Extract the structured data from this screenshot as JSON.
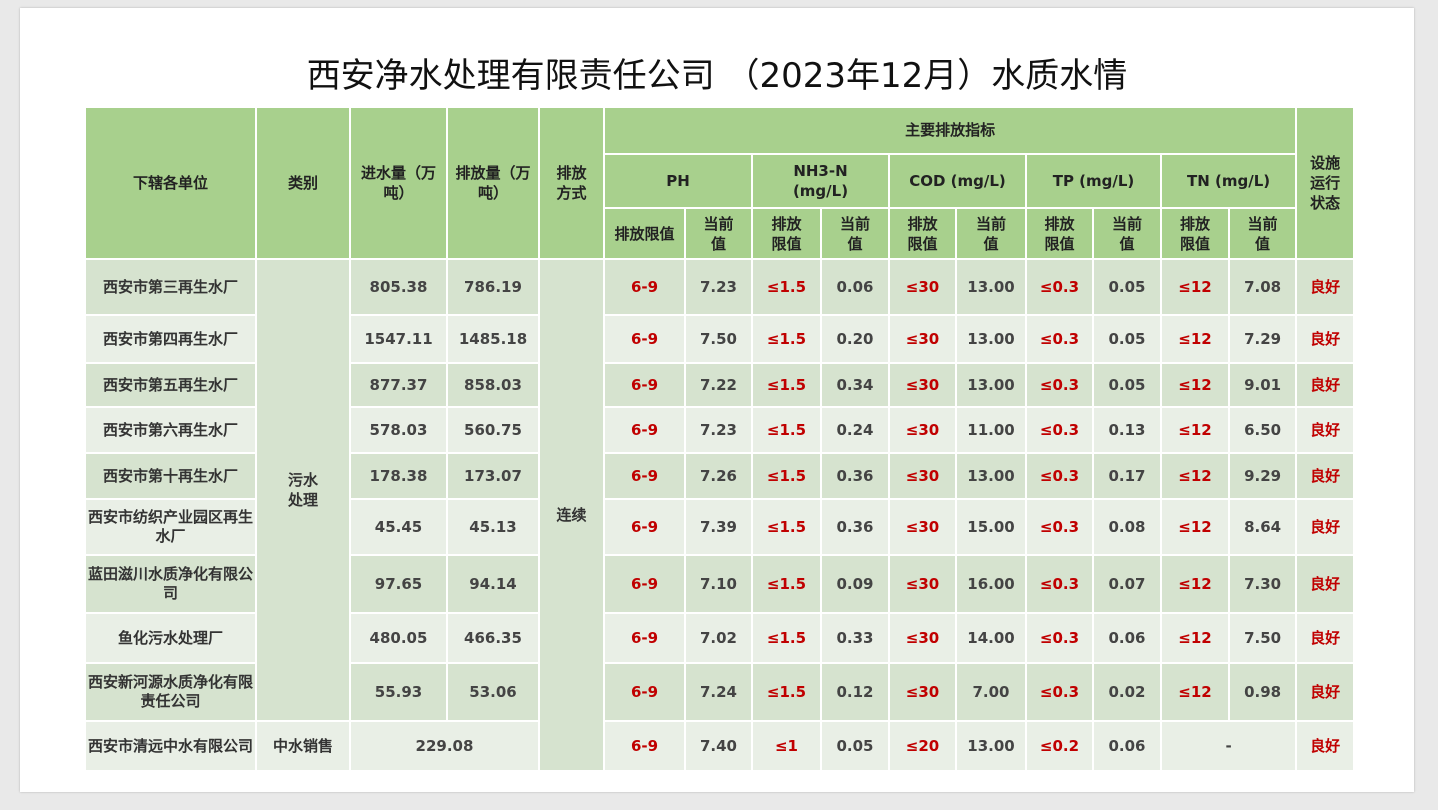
{
  "title": "西安净水处理有限责任公司 （2023年12月）水质水情",
  "header": {
    "unit": "下辖各单位",
    "category": "类别",
    "inflow": "进水量（万吨）",
    "outflow": "排放量（万吨）",
    "method": "排放方式",
    "main_indicators": "主要排放指标",
    "status": "设施运行状态",
    "ph": "PH",
    "nh3n": "NH3-N (mg/L)",
    "cod": "COD (mg/L)",
    "tp": "TP (mg/L)",
    "tn": "TN (mg/L)",
    "limit_label": "排放限值",
    "current_label": "当前值"
  },
  "categories": {
    "sewage": "污水处理",
    "reuse": "中水销售"
  },
  "method_value": "连续",
  "rows": [
    {
      "unit": "西安市第三再生水厂",
      "inflow": "805.38",
      "outflow": "786.19",
      "ph_lim": "6-9",
      "ph": "7.23",
      "nh3_lim": "≤1.5",
      "nh3": "0.06",
      "cod_lim": "≤30",
      "cod": "13.00",
      "tp_lim": "≤0.3",
      "tp": "0.05",
      "tn_lim": "≤12",
      "tn": "7.08",
      "status": "良好"
    },
    {
      "unit": "西安市第四再生水厂",
      "inflow": "1547.11",
      "outflow": "1485.18",
      "ph_lim": "6-9",
      "ph": "7.50",
      "nh3_lim": "≤1.5",
      "nh3": "0.20",
      "cod_lim": "≤30",
      "cod": "13.00",
      "tp_lim": "≤0.3",
      "tp": "0.05",
      "tn_lim": "≤12",
      "tn": "7.29",
      "status": "良好"
    },
    {
      "unit": "西安市第五再生水厂",
      "inflow": "877.37",
      "outflow": "858.03",
      "ph_lim": "6-9",
      "ph": "7.22",
      "nh3_lim": "≤1.5",
      "nh3": "0.34",
      "cod_lim": "≤30",
      "cod": "13.00",
      "tp_lim": "≤0.3",
      "tp": "0.05",
      "tn_lim": "≤12",
      "tn": "9.01",
      "status": "良好"
    },
    {
      "unit": "西安市第六再生水厂",
      "inflow": "578.03",
      "outflow": "560.75",
      "ph_lim": "6-9",
      "ph": "7.23",
      "nh3_lim": "≤1.5",
      "nh3": "0.24",
      "cod_lim": "≤30",
      "cod": "11.00",
      "tp_lim": "≤0.3",
      "tp": "0.13",
      "tn_lim": "≤12",
      "tn": "6.50",
      "status": "良好"
    },
    {
      "unit": "西安市第十再生水厂",
      "inflow": "178.38",
      "outflow": "173.07",
      "ph_lim": "6-9",
      "ph": "7.26",
      "nh3_lim": "≤1.5",
      "nh3": "0.36",
      "cod_lim": "≤30",
      "cod": "13.00",
      "tp_lim": "≤0.3",
      "tp": "0.17",
      "tn_lim": "≤12",
      "tn": "9.29",
      "status": "良好"
    },
    {
      "unit": "西安市纺织产业园区再生水厂",
      "inflow": "45.45",
      "outflow": "45.13",
      "ph_lim": "6-9",
      "ph": "7.39",
      "nh3_lim": "≤1.5",
      "nh3": "0.36",
      "cod_lim": "≤30",
      "cod": "15.00",
      "tp_lim": "≤0.3",
      "tp": "0.08",
      "tn_lim": "≤12",
      "tn": "8.64",
      "status": "良好"
    },
    {
      "unit": "蓝田滋川水质净化有限公司",
      "inflow": "97.65",
      "outflow": "94.14",
      "ph_lim": "6-9",
      "ph": "7.10",
      "nh3_lim": "≤1.5",
      "nh3": "0.09",
      "cod_lim": "≤30",
      "cod": "16.00",
      "tp_lim": "≤0.3",
      "tp": "0.07",
      "tn_lim": "≤12",
      "tn": "7.30",
      "status": "良好"
    },
    {
      "unit": "鱼化污水处理厂",
      "inflow": "480.05",
      "outflow": "466.35",
      "ph_lim": "6-9",
      "ph": "7.02",
      "nh3_lim": "≤1.5",
      "nh3": "0.33",
      "cod_lim": "≤30",
      "cod": "14.00",
      "tp_lim": "≤0.3",
      "tp": "0.06",
      "tn_lim": "≤12",
      "tn": "7.50",
      "status": "良好"
    },
    {
      "unit": "西安新河源水质净化有限责任公司",
      "inflow": "55.93",
      "outflow": "53.06",
      "ph_lim": "6-9",
      "ph": "7.24",
      "nh3_lim": "≤1.5",
      "nh3": "0.12",
      "cod_lim": "≤30",
      "cod": "7.00",
      "tp_lim": "≤0.3",
      "tp": "0.02",
      "tn_lim": "≤12",
      "tn": "0.98",
      "status": "良好"
    }
  ],
  "last_row": {
    "unit": "西安市清远中水有限公司",
    "volume": "229.08",
    "ph_lim": "6-9",
    "ph": "7.40",
    "nh3_lim": "≤1",
    "nh3": "0.05",
    "cod_lim": "≤20",
    "cod": "13.00",
    "tp_lim": "≤0.2",
    "tp": "0.06",
    "tn": "-",
    "status": "良好"
  }
}
